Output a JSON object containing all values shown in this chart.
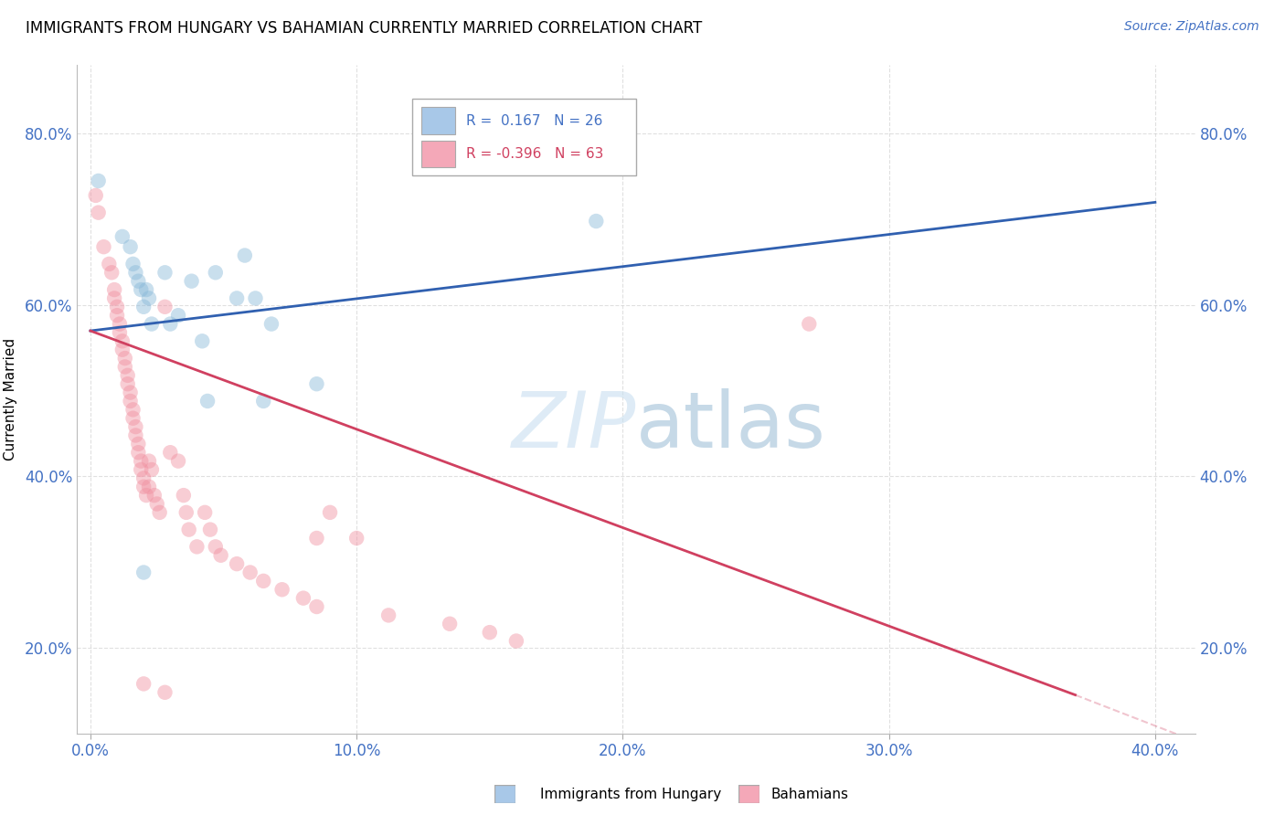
{
  "title": "IMMIGRANTS FROM HUNGARY VS BAHAMIAN CURRENTLY MARRIED CORRELATION CHART",
  "source": "Source: ZipAtlas.com",
  "ylabel_label": "Currently Married",
  "x_tick_labels": [
    "0.0%",
    "10.0%",
    "20.0%",
    "30.0%",
    "40.0%"
  ],
  "x_tick_values": [
    0.0,
    0.1,
    0.2,
    0.3,
    0.4
  ],
  "y_tick_labels": [
    "20.0%",
    "40.0%",
    "60.0%",
    "80.0%"
  ],
  "y_tick_values": [
    0.2,
    0.4,
    0.6,
    0.8
  ],
  "xlim": [
    -0.005,
    0.415
  ],
  "ylim": [
    0.1,
    0.88
  ],
  "legend_color1": "#a8c8e8",
  "legend_color2": "#f4a8b8",
  "color_blue": "#88b8d8",
  "color_pink": "#f090a0",
  "trendline_blue": "#3060b0",
  "trendline_pink": "#d04060",
  "background_color": "#ffffff",
  "grid_color": "#cccccc",
  "blue_dots": [
    [
      0.003,
      0.745
    ],
    [
      0.012,
      0.68
    ],
    [
      0.015,
      0.668
    ],
    [
      0.016,
      0.648
    ],
    [
      0.017,
      0.638
    ],
    [
      0.018,
      0.628
    ],
    [
      0.019,
      0.618
    ],
    [
      0.02,
      0.598
    ],
    [
      0.021,
      0.618
    ],
    [
      0.022,
      0.608
    ],
    [
      0.023,
      0.578
    ],
    [
      0.028,
      0.638
    ],
    [
      0.03,
      0.578
    ],
    [
      0.033,
      0.588
    ],
    [
      0.038,
      0.628
    ],
    [
      0.042,
      0.558
    ],
    [
      0.044,
      0.488
    ],
    [
      0.047,
      0.638
    ],
    [
      0.055,
      0.608
    ],
    [
      0.058,
      0.658
    ],
    [
      0.062,
      0.608
    ],
    [
      0.065,
      0.488
    ],
    [
      0.068,
      0.578
    ],
    [
      0.085,
      0.508
    ],
    [
      0.19,
      0.698
    ],
    [
      0.02,
      0.288
    ]
  ],
  "pink_dots": [
    [
      0.002,
      0.728
    ],
    [
      0.003,
      0.708
    ],
    [
      0.005,
      0.668
    ],
    [
      0.007,
      0.648
    ],
    [
      0.008,
      0.638
    ],
    [
      0.009,
      0.618
    ],
    [
      0.009,
      0.608
    ],
    [
      0.01,
      0.598
    ],
    [
      0.01,
      0.588
    ],
    [
      0.011,
      0.578
    ],
    [
      0.011,
      0.568
    ],
    [
      0.012,
      0.558
    ],
    [
      0.012,
      0.548
    ],
    [
      0.013,
      0.538
    ],
    [
      0.013,
      0.528
    ],
    [
      0.014,
      0.518
    ],
    [
      0.014,
      0.508
    ],
    [
      0.015,
      0.498
    ],
    [
      0.015,
      0.488
    ],
    [
      0.016,
      0.478
    ],
    [
      0.016,
      0.468
    ],
    [
      0.017,
      0.458
    ],
    [
      0.017,
      0.448
    ],
    [
      0.018,
      0.438
    ],
    [
      0.018,
      0.428
    ],
    [
      0.019,
      0.418
    ],
    [
      0.019,
      0.408
    ],
    [
      0.02,
      0.398
    ],
    [
      0.02,
      0.388
    ],
    [
      0.021,
      0.378
    ],
    [
      0.022,
      0.418
    ],
    [
      0.022,
      0.388
    ],
    [
      0.023,
      0.408
    ],
    [
      0.024,
      0.378
    ],
    [
      0.025,
      0.368
    ],
    [
      0.026,
      0.358
    ],
    [
      0.028,
      0.598
    ],
    [
      0.03,
      0.428
    ],
    [
      0.033,
      0.418
    ],
    [
      0.035,
      0.378
    ],
    [
      0.036,
      0.358
    ],
    [
      0.037,
      0.338
    ],
    [
      0.04,
      0.318
    ],
    [
      0.043,
      0.358
    ],
    [
      0.045,
      0.338
    ],
    [
      0.047,
      0.318
    ],
    [
      0.049,
      0.308
    ],
    [
      0.055,
      0.298
    ],
    [
      0.06,
      0.288
    ],
    [
      0.065,
      0.278
    ],
    [
      0.072,
      0.268
    ],
    [
      0.08,
      0.258
    ],
    [
      0.085,
      0.248
    ],
    [
      0.09,
      0.358
    ],
    [
      0.1,
      0.328
    ],
    [
      0.112,
      0.238
    ],
    [
      0.135,
      0.228
    ],
    [
      0.15,
      0.218
    ],
    [
      0.16,
      0.208
    ],
    [
      0.02,
      0.158
    ],
    [
      0.028,
      0.148
    ],
    [
      0.085,
      0.328
    ],
    [
      0.27,
      0.578
    ]
  ]
}
